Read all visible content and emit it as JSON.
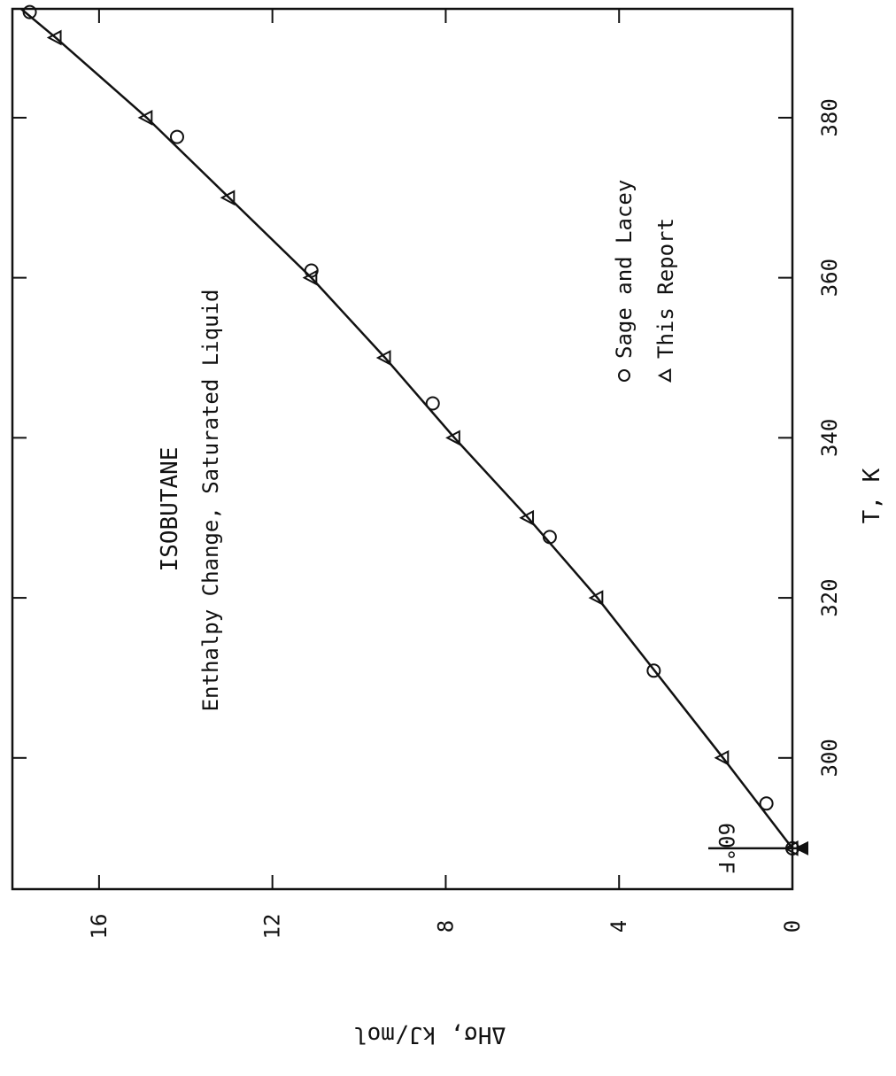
{
  "chart_data": {
    "type": "scatter",
    "title": "ISOBUTANE",
    "subtitle": "Enthalpy Change, Saturated Liquid",
    "xlabel": "T, K",
    "ylabel": "ΔHσ, kJ/mol",
    "xlim": [
      283.6,
      393.6
    ],
    "ylim": [
      0,
      18
    ],
    "x_ticks": [
      300,
      320,
      340,
      360,
      380
    ],
    "y_ticks": [
      0,
      4,
      8,
      12,
      16
    ],
    "grid": false,
    "legend_position": "top-right",
    "annotation": {
      "text": "60°F",
      "x": 288.7,
      "y": 0
    },
    "series": [
      {
        "name": "Sage and Lacey",
        "marker": "circle",
        "x": [
          288.7,
          294.3,
          310.9,
          327.6,
          344.3,
          360.9,
          377.6,
          393.2
        ],
        "y": [
          0,
          0.6,
          3.2,
          5.6,
          8.3,
          11.1,
          14.2,
          17.6
        ]
      },
      {
        "name": "This Report",
        "marker": "triangle",
        "x": [
          288.7,
          300,
          320,
          330,
          340,
          350,
          360,
          370,
          380,
          390
        ],
        "y": [
          0,
          1.6,
          4.5,
          6.1,
          7.8,
          9.4,
          11.1,
          13.0,
          14.9,
          17.0
        ]
      }
    ],
    "fit_line": {
      "x": [
        288.7,
        300,
        320,
        330,
        340,
        350,
        360,
        370,
        380,
        390,
        393.6
      ],
      "y": [
        0,
        1.6,
        4.5,
        6.1,
        7.8,
        9.4,
        11.1,
        13.0,
        14.9,
        17.0,
        17.8
      ]
    }
  }
}
